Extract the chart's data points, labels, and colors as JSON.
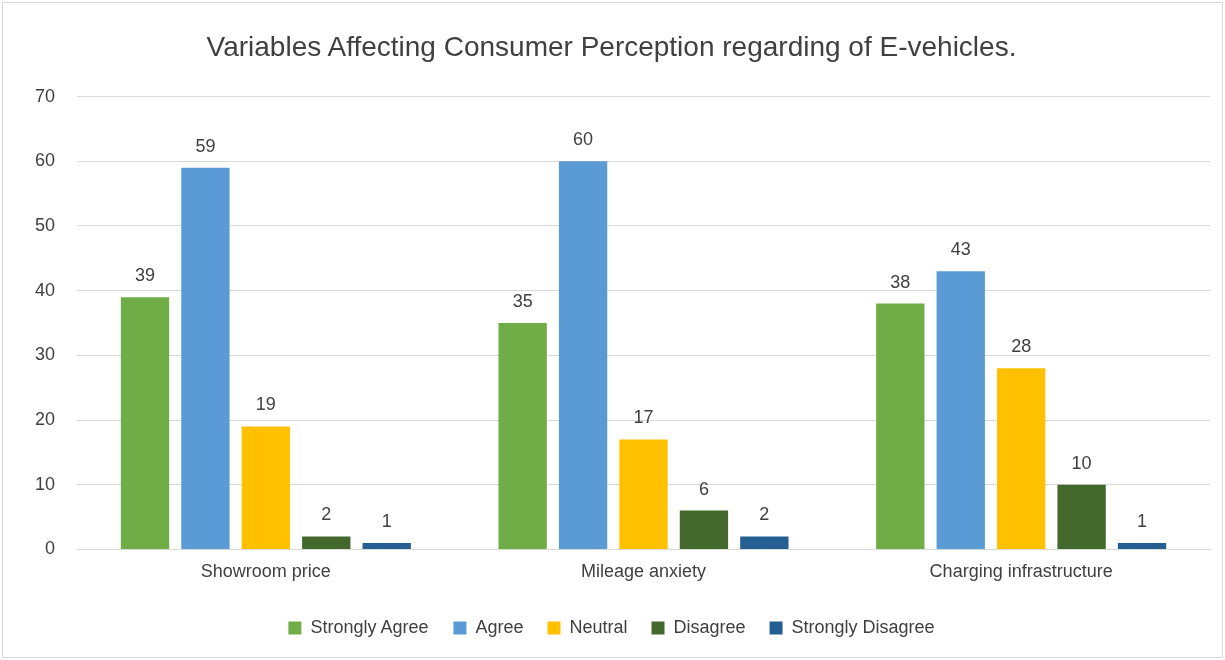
{
  "chart_data": {
    "type": "bar",
    "title": "Variables Affecting Consumer Perception regarding of E-vehicles.",
    "categories": [
      "Showroom price",
      "Mileage anxiety",
      "Charging infrastructure"
    ],
    "series": [
      {
        "name": "Strongly Agree",
        "color": "#70ad47",
        "values": [
          39,
          35,
          38
        ]
      },
      {
        "name": "Agree",
        "color": "#5b9bd5",
        "values": [
          59,
          60,
          43
        ]
      },
      {
        "name": "Neutral",
        "color": "#ffc000",
        "values": [
          19,
          17,
          28
        ]
      },
      {
        "name": "Disagree",
        "color": "#43682b",
        "values": [
          2,
          6,
          10
        ]
      },
      {
        "name": "Strongly Disagree",
        "color": "#255e91",
        "values": [
          1,
          2,
          1
        ]
      }
    ],
    "ylim": [
      0,
      70
    ],
    "yticks": [
      0,
      10,
      20,
      30,
      40,
      50,
      60,
      70
    ],
    "grid": "y",
    "legend": "bottom",
    "data_labels": true
  }
}
